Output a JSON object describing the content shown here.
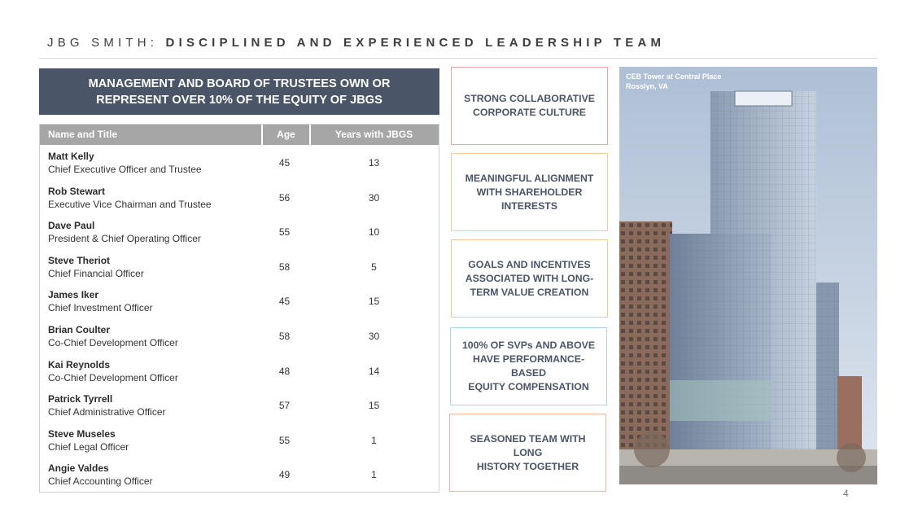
{
  "header": {
    "brand": "JBG SMITH:",
    "headline": "DISCIPLINED AND EXPERIENCED LEADERSHIP TEAM"
  },
  "banner": {
    "line1": "MANAGEMENT AND BOARD OF TRUSTEES OWN OR",
    "line2": "REPRESENT OVER 10% OF THE EQUITY OF JBGS"
  },
  "table": {
    "headers": {
      "name": "Name and Title",
      "age": "Age",
      "years": "Years with JBGS"
    },
    "rows": [
      {
        "name": "Matt Kelly",
        "title": "Chief Executive Officer and Trustee",
        "age": "45",
        "years": "13"
      },
      {
        "name": "Rob Stewart",
        "title": "Executive Vice Chairman and Trustee",
        "age": "56",
        "years": "30"
      },
      {
        "name": "Dave Paul",
        "title": "President & Chief Operating Officer",
        "age": "55",
        "years": "10"
      },
      {
        "name": "Steve Theriot",
        "title": "Chief Financial Officer",
        "age": "58",
        "years": "5"
      },
      {
        "name": "James Iker",
        "title": "Chief Investment Officer",
        "age": "45",
        "years": "15"
      },
      {
        "name": "Brian Coulter",
        "title": "Co-Chief Development Officer",
        "age": "58",
        "years": "30"
      },
      {
        "name": "Kai Reynolds",
        "title": "Co-Chief Development Officer",
        "age": "48",
        "years": "14"
      },
      {
        "name": "Patrick Tyrrell",
        "title": "Chief Administrative Officer",
        "age": "57",
        "years": "15"
      },
      {
        "name": "Steve Museles",
        "title": "Chief Legal Officer",
        "age": "55",
        "years": "1"
      },
      {
        "name": "Angie Valdes",
        "title": "Chief Accounting Officer",
        "age": "49",
        "years": "1"
      }
    ]
  },
  "highlights": [
    {
      "line1": "STRONG COLLABORATIVE",
      "line2": "CORPORATE CULTURE",
      "line3": ""
    },
    {
      "line1": "MEANINGFUL ALIGNMENT",
      "line2": "WITH SHAREHOLDER",
      "line3": "INTERESTS"
    },
    {
      "line1": "GOALS AND INCENTIVES",
      "line2": "ASSOCIATED WITH LONG-",
      "line3": "TERM VALUE CREATION"
    },
    {
      "line1": "100% OF SVPs AND ABOVE",
      "line2": "HAVE PERFORMANCE-BASED",
      "line3": "EQUITY COMPENSATION"
    },
    {
      "line1": "SEASONED TEAM WITH LONG",
      "line2": "HISTORY TOGETHER",
      "line3": ""
    }
  ],
  "photo": {
    "caption_line1": "CEB Tower at Central Place",
    "caption_line2": "Rosslyn, VA"
  },
  "page_number": "4",
  "colors": {
    "banner_bg": "#4a5568",
    "table_header_bg": "#a6a6a6",
    "box_text": "#4a5568",
    "box_borders": [
      "#f3a59a",
      "#f7cf9a",
      "#f3c89a",
      "#a8d8e8",
      "#f3b69a"
    ]
  }
}
